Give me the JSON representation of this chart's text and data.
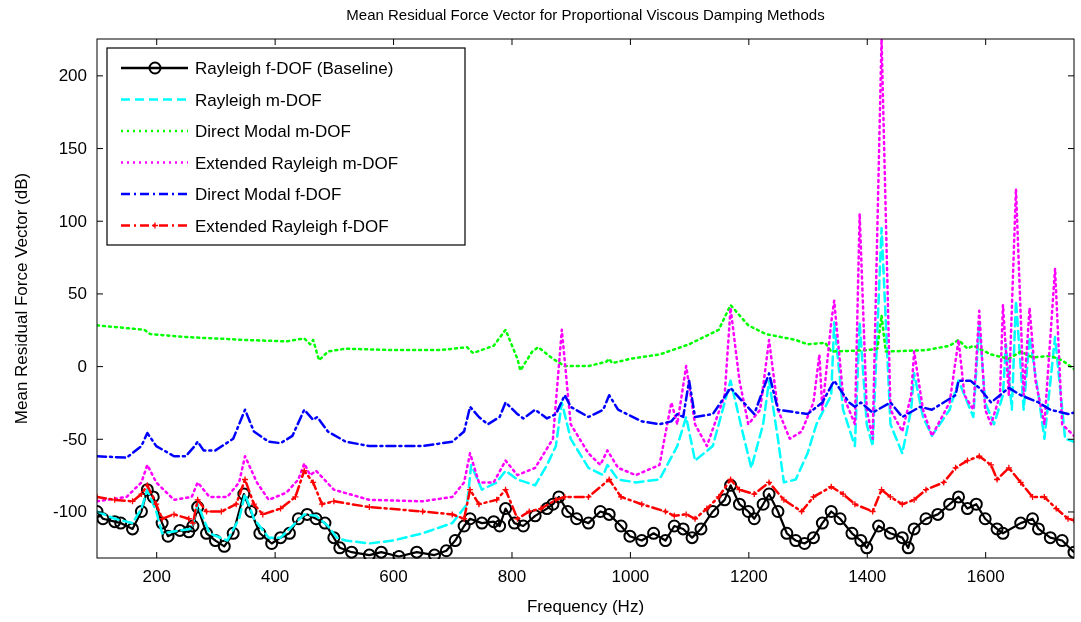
{
  "chart_data": {
    "type": "line",
    "title": "Mean Residual Force Vector for Proportional Viscous Damping Methods",
    "xlabel": "Frequency (Hz)",
    "ylabel": "Mean Residual Force Vector (dB)",
    "xlim": [
      100,
      1750
    ],
    "xticks": [
      200,
      400,
      600,
      800,
      1000,
      1200,
      1400,
      1600
    ],
    "ylim": [
      -132,
      225
    ],
    "yticks": [
      -100,
      -50,
      0,
      50,
      100,
      150,
      200
    ],
    "grid": false,
    "legend": "top left",
    "series": [
      {
        "name": "Rayleigh f-DOF (Baseline)",
        "color": "#000000",
        "marker": "circle",
        "line_style": "solid",
        "x": [
          100,
          110,
          130,
          140,
          160,
          175,
          185,
          195,
          210,
          220,
          240,
          255,
          262,
          270,
          285,
          300,
          315,
          330,
          348,
          360,
          375,
          395,
          410,
          425,
          440,
          455,
          470,
          485,
          500,
          510,
          530,
          560,
          580,
          610,
          640,
          670,
          690,
          705,
          720,
          730,
          750,
          770,
          780,
          790,
          805,
          820,
          840,
          860,
          870,
          880,
          895,
          910,
          930,
          950,
          965,
          985,
          1000,
          1020,
          1040,
          1060,
          1075,
          1090,
          1105,
          1120,
          1140,
          1160,
          1170,
          1185,
          1200,
          1210,
          1225,
          1235,
          1250,
          1265,
          1280,
          1295,
          1310,
          1325,
          1340,
          1355,
          1375,
          1390,
          1400,
          1420,
          1440,
          1460,
          1470,
          1480,
          1500,
          1520,
          1540,
          1555,
          1570,
          1585,
          1600,
          1620,
          1630,
          1660,
          1680,
          1690,
          1710,
          1730,
          1750
        ],
        "values": [
          -100,
          -105,
          -107,
          -108,
          -112,
          -100,
          -85,
          -90,
          -108,
          -117,
          -113,
          -114,
          -110,
          -97,
          -115,
          -120,
          -124,
          -115,
          -88,
          -100,
          -115,
          -122,
          -118,
          -115,
          -105,
          -102,
          -105,
          -108,
          -118,
          -125,
          -128,
          -130,
          -128,
          -131,
          -128,
          -130,
          -127,
          -120,
          -110,
          -105,
          -108,
          -107,
          -110,
          -98,
          -108,
          -110,
          -103,
          -98,
          -95,
          -90,
          -100,
          -105,
          -108,
          -100,
          -102,
          -110,
          -117,
          -120,
          -115,
          -120,
          -110,
          -112,
          -118,
          -112,
          -100,
          -92,
          -82,
          -95,
          -100,
          -105,
          -95,
          -88,
          -100,
          -115,
          -120,
          -122,
          -118,
          -108,
          -100,
          -105,
          -115,
          -120,
          -125,
          -110,
          -115,
          -118,
          -125,
          -112,
          -105,
          -102,
          -95,
          -90,
          -98,
          -95,
          -105,
          -112,
          -115,
          -108,
          -105,
          -112,
          -118,
          -120,
          -128
        ]
      },
      {
        "name": "Rayleigh m-DOF",
        "color": "#00ffff",
        "marker": "none",
        "line_style": "dashed",
        "x": [
          100,
          130,
          160,
          175,
          185,
          200,
          210,
          240,
          260,
          270,
          290,
          320,
          340,
          350,
          365,
          390,
          410,
          430,
          450,
          470,
          490,
          505,
          520,
          560,
          600,
          650,
          700,
          725,
          732,
          750,
          775,
          790,
          810,
          840,
          860,
          875,
          885,
          900,
          930,
          955,
          962,
          980,
          1010,
          1050,
          1080,
          1095,
          1110,
          1140,
          1170,
          1190,
          1205,
          1225,
          1235,
          1250,
          1260,
          1280,
          1300,
          1315,
          1340,
          1345,
          1360,
          1380,
          1388,
          1400,
          1410,
          1425,
          1440,
          1460,
          1475,
          1480,
          1495,
          1510,
          1540,
          1555,
          1570,
          1580,
          1590,
          1600,
          1615,
          1630,
          1635,
          1645,
          1652,
          1665,
          1675,
          1690,
          1700,
          1718,
          1735,
          1750
        ],
        "values": [
          -100,
          -105,
          -108,
          -98,
          -85,
          -100,
          -115,
          -113,
          -112,
          -95,
          -115,
          -120,
          -105,
          -88,
          -105,
          -118,
          -118,
          -110,
          -102,
          -103,
          -110,
          -118,
          -120,
          -122,
          -120,
          -115,
          -108,
          -95,
          -68,
          -85,
          -80,
          -72,
          -78,
          -82,
          -68,
          -55,
          -25,
          -50,
          -70,
          -75,
          -68,
          -78,
          -80,
          -78,
          -55,
          -35,
          -65,
          -55,
          -10,
          -45,
          -70,
          -40,
          -10,
          -50,
          -80,
          -78,
          -60,
          -40,
          -20,
          30,
          -30,
          -55,
          30,
          -40,
          -55,
          95,
          -40,
          -60,
          -30,
          -5,
          -35,
          -48,
          -30,
          -10,
          -25,
          -35,
          30,
          -25,
          -40,
          -20,
          15,
          -30,
          45,
          -30,
          20,
          -20,
          -50,
          20,
          -50,
          -52
        ]
      },
      {
        "name": "Direct Modal m-DOF",
        "color": "#00ff00",
        "marker": "none",
        "line_style": "dotted",
        "x": [
          100,
          180,
          190,
          250,
          350,
          420,
          450,
          460,
          465,
          475,
          490,
          520,
          600,
          680,
          725,
          735,
          770,
          790,
          800,
          810,
          815,
          835,
          845,
          870,
          890,
          930,
          960,
          965,
          970,
          1000,
          1050,
          1100,
          1150,
          1170,
          1185,
          1200,
          1230,
          1280,
          1300,
          1330,
          1340,
          1400,
          1418,
          1425,
          1432,
          1500,
          1540,
          1555,
          1570,
          1580,
          1610,
          1640,
          1660,
          1680,
          1710,
          1730,
          1750
        ],
        "values": [
          28,
          25,
          22,
          20,
          18,
          17,
          19,
          15,
          18,
          4,
          10,
          12,
          11,
          11,
          13,
          9,
          14,
          25,
          15,
          5,
          -3,
          10,
          13,
          5,
          0,
          0,
          3,
          5,
          2,
          5,
          8,
          15,
          25,
          42,
          35,
          28,
          22,
          18,
          15,
          16,
          10,
          11,
          12,
          35,
          10,
          11,
          14,
          18,
          12,
          14,
          8,
          5,
          10,
          6,
          7,
          4,
          -2
        ]
      },
      {
        "name": "Extended Rayleigh m-DOF",
        "color": "#ff00ff",
        "marker": "none",
        "line_style": "dotted",
        "x": [
          100,
          150,
          175,
          185,
          200,
          230,
          260,
          270,
          290,
          320,
          340,
          350,
          370,
          390,
          420,
          440,
          450,
          460,
          470,
          500,
          560,
          650,
          700,
          720,
          730,
          745,
          770,
          790,
          810,
          840,
          870,
          885,
          900,
          930,
          950,
          962,
          980,
          1010,
          1050,
          1070,
          1080,
          1095,
          1110,
          1130,
          1160,
          1170,
          1185,
          1200,
          1220,
          1235,
          1250,
          1270,
          1290,
          1310,
          1320,
          1325,
          1340,
          1345,
          1360,
          1380,
          1388,
          1400,
          1410,
          1425,
          1440,
          1460,
          1475,
          1480,
          1495,
          1510,
          1540,
          1555,
          1565,
          1580,
          1590,
          1600,
          1610,
          1625,
          1630,
          1640,
          1652,
          1665,
          1675,
          1685,
          1700,
          1718,
          1730,
          1750
        ],
        "values": [
          -93,
          -90,
          -80,
          -68,
          -80,
          -92,
          -90,
          -80,
          -90,
          -90,
          -80,
          -62,
          -80,
          -92,
          -87,
          -78,
          -67,
          -75,
          -72,
          -85,
          -92,
          -93,
          -90,
          -80,
          -60,
          -80,
          -80,
          -65,
          -75,
          -70,
          -50,
          25,
          -40,
          -60,
          -68,
          -58,
          -70,
          -75,
          -68,
          -25,
          -40,
          0,
          -40,
          -55,
          -20,
          40,
          -10,
          -40,
          -30,
          18,
          -30,
          -50,
          -45,
          -25,
          8,
          -30,
          30,
          45,
          -20,
          -40,
          105,
          -30,
          -50,
          225,
          -30,
          -45,
          -20,
          10,
          -30,
          -48,
          -25,
          18,
          -20,
          -30,
          38,
          -30,
          -40,
          -20,
          42,
          -20,
          122,
          -20,
          40,
          -10,
          -40,
          67,
          -40,
          -48
        ]
      },
      {
        "name": "Direct Modal f-DOF",
        "color": "#0000ff",
        "marker": "none",
        "line_style": "dashdot",
        "x": [
          100,
          150,
          175,
          185,
          200,
          230,
          250,
          265,
          270,
          280,
          300,
          330,
          350,
          365,
          390,
          410,
          430,
          450,
          465,
          472,
          490,
          520,
          560,
          650,
          700,
          720,
          730,
          745,
          760,
          780,
          790,
          810,
          820,
          840,
          860,
          875,
          890,
          900,
          930,
          955,
          965,
          980,
          1020,
          1050,
          1070,
          1080,
          1090,
          1100,
          1110,
          1140,
          1170,
          1185,
          1210,
          1235,
          1250,
          1300,
          1325,
          1345,
          1370,
          1380,
          1390,
          1410,
          1440,
          1460,
          1490,
          1510,
          1550,
          1555,
          1575,
          1590,
          1610,
          1640,
          1660,
          1690,
          1710,
          1740,
          1750
        ],
        "values": [
          -62,
          -63,
          -55,
          -46,
          -55,
          -62,
          -62,
          -55,
          -52,
          -58,
          -58,
          -50,
          -30,
          -45,
          -52,
          -53,
          -48,
          -30,
          -37,
          -35,
          -45,
          -52,
          -55,
          -55,
          -52,
          -45,
          -28,
          -35,
          -40,
          -35,
          -25,
          -33,
          -36,
          -30,
          -36,
          -33,
          -20,
          -28,
          -35,
          -30,
          -20,
          -30,
          -38,
          -40,
          -38,
          -33,
          -35,
          -10,
          -35,
          -33,
          -15,
          -22,
          -33,
          -5,
          -30,
          -33,
          -25,
          -10,
          -25,
          -28,
          -25,
          -32,
          -25,
          -35,
          -28,
          -30,
          -20,
          -10,
          -10,
          -15,
          -25,
          -15,
          -20,
          -25,
          -30,
          -33,
          -32
        ]
      },
      {
        "name": "Extended Rayleigh f-DOF",
        "color": "#ff0000",
        "marker": "cross",
        "line_style": "dashdot",
        "x": [
          100,
          130,
          160,
          175,
          185,
          200,
          210,
          230,
          255,
          262,
          270,
          285,
          310,
          335,
          350,
          365,
          380,
          410,
          435,
          450,
          465,
          480,
          500,
          560,
          650,
          700,
          720,
          730,
          745,
          775,
          790,
          810,
          830,
          850,
          875,
          890,
          930,
          965,
          985,
          1020,
          1060,
          1075,
          1095,
          1110,
          1130,
          1150,
          1170,
          1185,
          1210,
          1235,
          1260,
          1290,
          1310,
          1340,
          1360,
          1380,
          1410,
          1425,
          1440,
          1460,
          1480,
          1500,
          1530,
          1550,
          1570,
          1590,
          1610,
          1620,
          1640,
          1660,
          1680,
          1700,
          1720,
          1740,
          1750
        ],
        "values": [
          -90,
          -92,
          -93,
          -88,
          -82,
          -95,
          -105,
          -102,
          -105,
          -108,
          -92,
          -100,
          -100,
          -95,
          -78,
          -95,
          -102,
          -98,
          -90,
          -72,
          -80,
          -95,
          -93,
          -97,
          -100,
          -102,
          -105,
          -85,
          -95,
          -92,
          -85,
          -105,
          -100,
          -98,
          -92,
          -90,
          -90,
          -78,
          -90,
          -95,
          -100,
          -103,
          -102,
          -105,
          -98,
          -90,
          -78,
          -85,
          -88,
          -80,
          -92,
          -100,
          -90,
          -83,
          -88,
          -95,
          -100,
          -85,
          -90,
          -95,
          -92,
          -85,
          -80,
          -70,
          -65,
          -62,
          -68,
          -78,
          -70,
          -80,
          -90,
          -90,
          -98,
          -105,
          -106
        ]
      }
    ]
  }
}
